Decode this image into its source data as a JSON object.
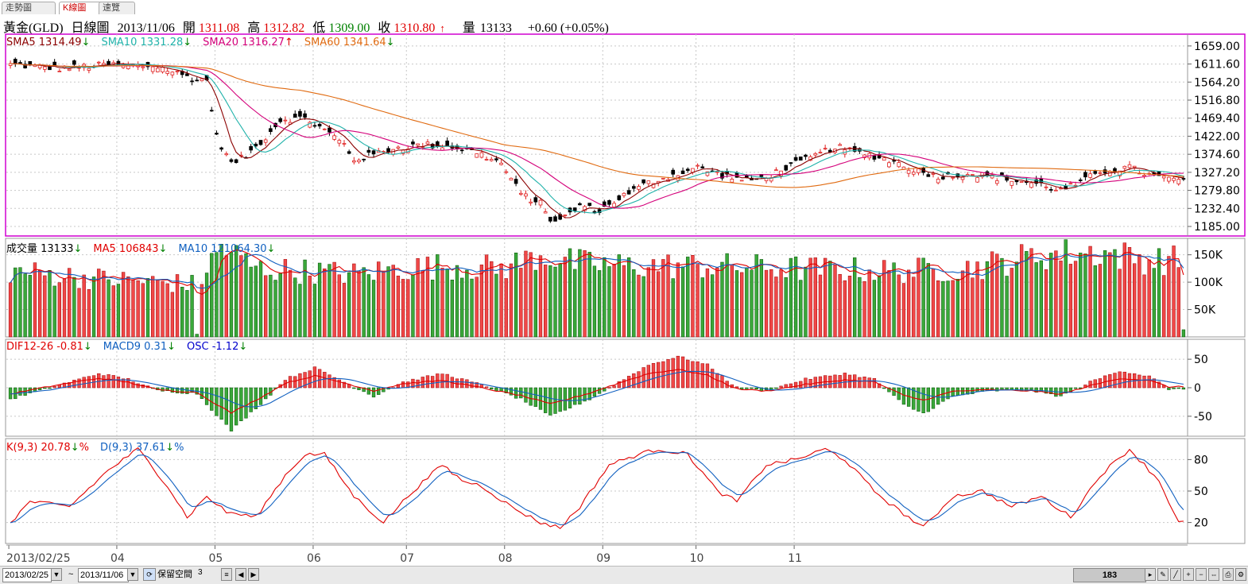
{
  "tabs": [
    "走勢圖",
    "K線圖",
    "速覽"
  ],
  "quote": {
    "name": "黃金(GLD)",
    "period": "日線圖",
    "date": "2013/11/06",
    "open_label": "開",
    "open": "1311.08",
    "high_label": "高",
    "high": "1312.82",
    "low_label": "低",
    "low": "1309.00",
    "close_label": "收",
    "close": "1310.80",
    "close_arrow": "↑",
    "vol_label": "量",
    "vol": "13133",
    "change": "+0.60 (+0.05%)"
  },
  "legends": {
    "price": [
      {
        "text": "SMA5 1314.49",
        "arrow": "↓",
        "color": "#8b0000"
      },
      {
        "text": "SMA10 1331.28",
        "arrow": "↓",
        "color": "#20b2aa"
      },
      {
        "text": "SMA20 1316.27",
        "arrow": "↑",
        "color": "#d4007a"
      },
      {
        "text": "SMA60 1341.64",
        "arrow": "↓",
        "color": "#e06a10"
      }
    ],
    "volume": [
      {
        "text": "成交量 13133",
        "arrow": "↓",
        "color": "#000"
      },
      {
        "text": "MA5 106843",
        "arrow": "↓",
        "color": "#e00000"
      },
      {
        "text": "MA10 121064.30",
        "arrow": "↓",
        "color": "#1060c0"
      }
    ],
    "macd": [
      {
        "text": "DIF12-26 -0.81",
        "arrow": "↓",
        "color": "#e00000"
      },
      {
        "text": "MACD9 0.31",
        "arrow": "↓",
        "color": "#1060c0"
      },
      {
        "text": "OSC -1.12",
        "arrow": "↓",
        "color": "#0000cc"
      }
    ],
    "kd": [
      {
        "text": "K(9,3) 20.78",
        "arrow": "↓",
        "suffix": "%",
        "color": "#e00000"
      },
      {
        "text": "D(9,3) 37.61",
        "arrow": "↓",
        "suffix": "%",
        "color": "#1060c0"
      }
    ]
  },
  "colors": {
    "up": "#f04040",
    "down": "#3a9a3a",
    "grid": "#c8c8c8",
    "frame_active": "#d000d0"
  },
  "chart_data": [
    {
      "type": "candlestick",
      "title": "黃金(GLD) 日線圖",
      "ylim": [
        1160,
        1690
      ],
      "yticks": [
        "1659.00",
        "1611.60",
        "1564.20",
        "1516.80",
        "1469.40",
        "1422.00",
        "1374.60",
        "1327.20",
        "1279.80",
        "1232.40",
        "1185.00"
      ],
      "x_tick_labels": [
        "2013/02/25",
        "04",
        "05",
        "06",
        "07",
        "08",
        "09",
        "10",
        "11"
      ],
      "close_keypoints": [
        [
          0,
          1610
        ],
        [
          10,
          1600
        ],
        [
          20,
          1610
        ],
        [
          30,
          1605
        ],
        [
          38,
          1570
        ],
        [
          40,
          1570
        ],
        [
          42,
          1420
        ],
        [
          45,
          1350
        ],
        [
          48,
          1370
        ],
        [
          52,
          1420
        ],
        [
          55,
          1465
        ],
        [
          60,
          1470
        ],
        [
          65,
          1430
        ],
        [
          68,
          1400
        ],
        [
          70,
          1360
        ],
        [
          74,
          1375
        ],
        [
          78,
          1390
        ],
        [
          84,
          1400
        ],
        [
          90,
          1395
        ],
        [
          95,
          1380
        ],
        [
          100,
          1350
        ],
        [
          104,
          1270
        ],
        [
          108,
          1245
        ],
        [
          110,
          1205
        ],
        [
          112,
          1200
        ],
        [
          116,
          1240
        ],
        [
          120,
          1225
        ],
        [
          124,
          1260
        ],
        [
          130,
          1300
        ],
        [
          135,
          1320
        ],
        [
          140,
          1340
        ],
        [
          145,
          1320
        ],
        [
          150,
          1305
        ],
        [
          154,
          1315
        ],
        [
          158,
          1340
        ],
        [
          163,
          1365
        ],
        [
          168,
          1395
        ],
        [
          172,
          1380
        ],
        [
          176,
          1370
        ],
        [
          180,
          1355
        ],
        [
          185,
          1330
        ],
        [
          190,
          1315
        ],
        [
          195,
          1325
        ],
        [
          200,
          1315
        ],
        [
          205,
          1305
        ],
        [
          210,
          1295
        ],
        [
          214,
          1280
        ],
        [
          218,
          1300
        ],
        [
          222,
          1330
        ],
        [
          228,
          1340
        ],
        [
          232,
          1320
        ],
        [
          236,
          1310
        ]
      ],
      "sma_labels": [
        "SMA5",
        "SMA10",
        "SMA20",
        "SMA60"
      ],
      "last": {
        "open": 1311.08,
        "high": 1312.82,
        "low": 1309.0,
        "close": 1310.8
      }
    },
    {
      "type": "bar",
      "title": "成交量",
      "ylim": [
        0,
        180000
      ],
      "yticks": [
        "150K",
        "100K",
        "50K"
      ],
      "level_keypoints": [
        [
          0,
          120000
        ],
        [
          20,
          105000
        ],
        [
          30,
          100000
        ],
        [
          38,
          95000
        ],
        [
          43,
          165000
        ],
        [
          50,
          125000
        ],
        [
          60,
          120000
        ],
        [
          70,
          115000
        ],
        [
          80,
          125000
        ],
        [
          90,
          130000
        ],
        [
          100,
          125000
        ],
        [
          108,
          150000
        ],
        [
          115,
          135000
        ],
        [
          125,
          130000
        ],
        [
          140,
          130000
        ],
        [
          160,
          125000
        ],
        [
          180,
          120000
        ],
        [
          195,
          125000
        ],
        [
          210,
          150000
        ],
        [
          222,
          155000
        ],
        [
          232,
          140000
        ]
      ],
      "last_value": 13133,
      "ma_labels": [
        "MA5",
        "MA10"
      ]
    },
    {
      "type": "bar",
      "title": "MACD",
      "ylim": [
        -85,
        85
      ],
      "yticks": [
        "50",
        "0",
        "-50"
      ],
      "osc_keypoints": [
        [
          0,
          -20
        ],
        [
          8,
          0
        ],
        [
          18,
          25
        ],
        [
          24,
          15
        ],
        [
          30,
          -5
        ],
        [
          38,
          -10
        ],
        [
          45,
          -75
        ],
        [
          52,
          -20
        ],
        [
          56,
          15
        ],
        [
          62,
          35
        ],
        [
          68,
          10
        ],
        [
          74,
          -15
        ],
        [
          80,
          10
        ],
        [
          88,
          25
        ],
        [
          96,
          5
        ],
        [
          104,
          -20
        ],
        [
          110,
          -50
        ],
        [
          118,
          -20
        ],
        [
          124,
          10
        ],
        [
          130,
          40
        ],
        [
          136,
          55
        ],
        [
          142,
          40
        ],
        [
          148,
          0
        ],
        [
          154,
          -5
        ],
        [
          162,
          15
        ],
        [
          170,
          25
        ],
        [
          176,
          15
        ],
        [
          182,
          -30
        ],
        [
          186,
          -45
        ],
        [
          192,
          -15
        ],
        [
          200,
          -5
        ],
        [
          208,
          -5
        ],
        [
          214,
          -15
        ],
        [
          220,
          10
        ],
        [
          226,
          30
        ],
        [
          232,
          20
        ],
        [
          236,
          -2
        ]
      ],
      "series_names": [
        "DIF12-26",
        "MACD9",
        "OSC"
      ]
    },
    {
      "type": "line",
      "title": "KD",
      "ylim": [
        0,
        100
      ],
      "yticks": [
        "80",
        "50",
        "20"
      ],
      "k_keypoints": [
        [
          0,
          20
        ],
        [
          4,
          40
        ],
        [
          12,
          35
        ],
        [
          20,
          70
        ],
        [
          26,
          90
        ],
        [
          32,
          55
        ],
        [
          36,
          25
        ],
        [
          40,
          45
        ],
        [
          44,
          30
        ],
        [
          50,
          25
        ],
        [
          56,
          65
        ],
        [
          60,
          85
        ],
        [
          64,
          85
        ],
        [
          70,
          45
        ],
        [
          76,
          20
        ],
        [
          82,
          50
        ],
        [
          88,
          75
        ],
        [
          92,
          60
        ],
        [
          96,
          55
        ],
        [
          102,
          35
        ],
        [
          108,
          20
        ],
        [
          112,
          15
        ],
        [
          116,
          35
        ],
        [
          122,
          75
        ],
        [
          128,
          85
        ],
        [
          132,
          90
        ],
        [
          138,
          85
        ],
        [
          144,
          50
        ],
        [
          148,
          40
        ],
        [
          154,
          75
        ],
        [
          160,
          80
        ],
        [
          166,
          90
        ],
        [
          170,
          80
        ],
        [
          176,
          50
        ],
        [
          180,
          35
        ],
        [
          186,
          15
        ],
        [
          192,
          45
        ],
        [
          198,
          50
        ],
        [
          204,
          35
        ],
        [
          210,
          45
        ],
        [
          216,
          25
        ],
        [
          222,
          65
        ],
        [
          228,
          90
        ],
        [
          234,
          60
        ],
        [
          238,
          20
        ]
      ],
      "series_names": [
        "K(9,3)",
        "D(9,3)"
      ]
    }
  ],
  "toolbar": {
    "start_date": "2013/02/25",
    "tilde": "~",
    "end_date": "2013/11/06",
    "keep_space_label": "保留空間",
    "keep_space_value": "3",
    "count": "183"
  }
}
